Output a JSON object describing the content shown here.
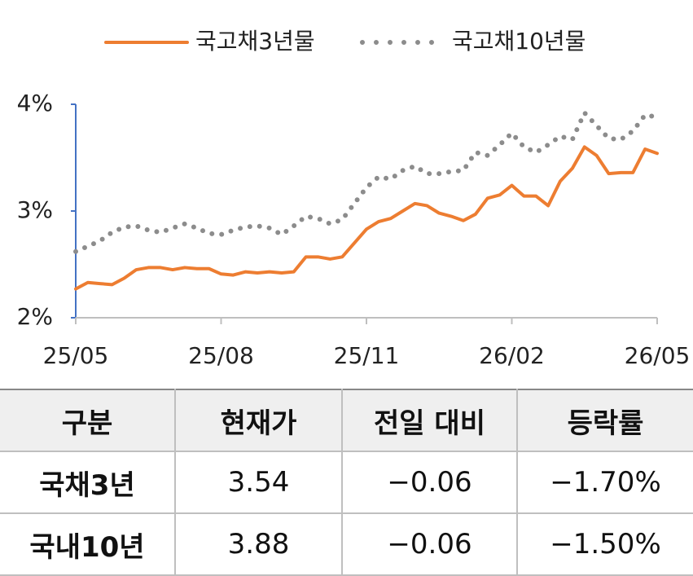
{
  "chart_data": {
    "type": "line",
    "x": [
      0,
      0.25,
      0.5,
      0.75,
      1,
      1.25,
      1.5,
      1.75,
      2,
      2.25,
      2.5,
      2.75,
      3,
      3.25,
      3.5,
      3.75,
      4,
      4.25,
      4.5,
      4.75,
      5,
      5.25,
      5.5,
      5.75,
      6,
      6.25,
      6.5,
      6.75,
      7,
      7.25,
      7.5,
      7.75,
      8,
      8.25,
      8.5,
      8.75,
      9,
      9.25,
      9.5,
      9.75,
      10,
      10.25,
      10.5,
      10.75,
      11,
      11.25,
      11.5,
      11.75,
      12
    ],
    "series": [
      {
        "name": "국고채3년물",
        "color": "#ed7d31",
        "style": "solid",
        "values": [
          2.27,
          2.33,
          2.32,
          2.31,
          2.37,
          2.45,
          2.47,
          2.47,
          2.45,
          2.47,
          2.46,
          2.46,
          2.41,
          2.4,
          2.43,
          2.42,
          2.43,
          2.42,
          2.43,
          2.57,
          2.57,
          2.55,
          2.57,
          2.7,
          2.83,
          2.9,
          2.93,
          3.0,
          3.07,
          3.05,
          2.98,
          2.95,
          2.91,
          2.97,
          3.12,
          3.15,
          3.24,
          3.14,
          3.14,
          3.05,
          3.28,
          3.4,
          3.6,
          3.52,
          3.35,
          3.36,
          3.36,
          3.58,
          3.54
        ]
      },
      {
        "name": "국고채10년물",
        "color": "#8c8c8c",
        "style": "dotted",
        "values": [
          2.62,
          2.67,
          2.72,
          2.8,
          2.85,
          2.86,
          2.82,
          2.8,
          2.84,
          2.88,
          2.84,
          2.79,
          2.78,
          2.82,
          2.85,
          2.86,
          2.84,
          2.78,
          2.86,
          2.95,
          2.93,
          2.88,
          2.92,
          3.07,
          3.22,
          3.32,
          3.3,
          3.38,
          3.42,
          3.35,
          3.35,
          3.37,
          3.38,
          3.55,
          3.52,
          3.62,
          3.73,
          3.6,
          3.55,
          3.62,
          3.7,
          3.67,
          3.92,
          3.8,
          3.68,
          3.67,
          3.75,
          3.9,
          3.88
        ]
      }
    ],
    "xlim": [
      0,
      12
    ],
    "xticks": [
      {
        "value": 0,
        "label": "25/05"
      },
      {
        "value": 3,
        "label": "25/08"
      },
      {
        "value": 6,
        "label": "25/11"
      },
      {
        "value": 9,
        "label": "26/02"
      },
      {
        "value": 12,
        "label": "26/05"
      }
    ],
    "ylim": [
      2,
      4
    ],
    "yticks": [
      {
        "value": 2,
        "label": "2%"
      },
      {
        "value": 3,
        "label": "3%"
      },
      {
        "value": 4,
        "label": "4%"
      }
    ],
    "grid": false,
    "legend": "top"
  },
  "table": {
    "header": [
      "구분",
      "현재가",
      "전일 대비",
      "등락률"
    ],
    "rows": [
      [
        "국채3년",
        "3.54",
        "−0.06",
        "−1.70%"
      ],
      [
        "국내10년",
        "3.88",
        "−0.06",
        "−1.50%"
      ]
    ]
  }
}
